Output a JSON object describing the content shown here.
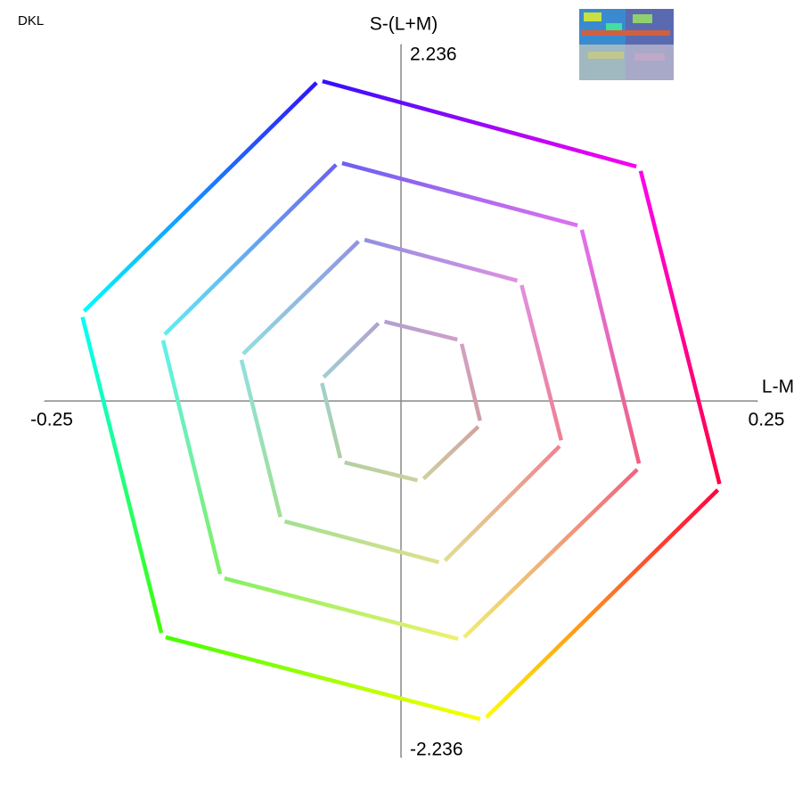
{
  "chart_data": {
    "type": "line",
    "title": "DKL",
    "xlabel": "L-M",
    "ylabel": "S-(L+M)",
    "xlim": [
      -0.25,
      0.25
    ],
    "ylim": [
      -2.236,
      2.236
    ],
    "xticks": [
      -0.25,
      0.25
    ],
    "yticks": [
      -2.236,
      2.236
    ],
    "closed": true,
    "series": [
      {
        "x": [
          -0.0575,
          0.1675,
          0.224,
          0.058,
          -0.1675,
          -0.224
        ],
        "y": [
          2.012,
          1.465,
          -0.542,
          -2.001,
          -1.476,
          0.548
        ],
        "colors": [
          "#3010ff",
          "#ff00f0",
          "#ff0040",
          "#ffff00",
          "#40ff00",
          "#00ffff"
        ]
      },
      {
        "x": [
          -0.04375,
          0.12625,
          0.1675,
          0.0425,
          -0.12625,
          -0.1675
        ],
        "y": [
          1.498,
          1.096,
          -0.414,
          -1.498,
          -1.107,
          0.402
        ],
        "colors": [
          "#6a60f0",
          "#e070f0",
          "#f06080",
          "#f0f070",
          "#80f060",
          "#60f0f0"
        ]
      },
      {
        "x": [
          -0.028,
          0.084,
          0.113,
          0.029,
          -0.084,
          -0.1125
        ],
        "y": [
          1.017,
          0.749,
          -0.268,
          -1.017,
          -0.749,
          0.28
        ],
        "colors": [
          "#9090e0",
          "#e090e0",
          "#f08090",
          "#e0e090",
          "#a0e090",
          "#90e0e0"
        ]
      },
      {
        "x": [
          -0.014,
          0.042,
          0.056,
          0.014,
          -0.042,
          -0.056
        ],
        "y": [
          0.503,
          0.38,
          -0.145,
          -0.503,
          -0.38,
          0.134
        ],
        "colors": [
          "#b0a0d0",
          "#d0a0c8",
          "#d0a0a0",
          "#d0d0a0",
          "#b0d0a0",
          "#a0d0d0"
        ]
      }
    ]
  }
}
